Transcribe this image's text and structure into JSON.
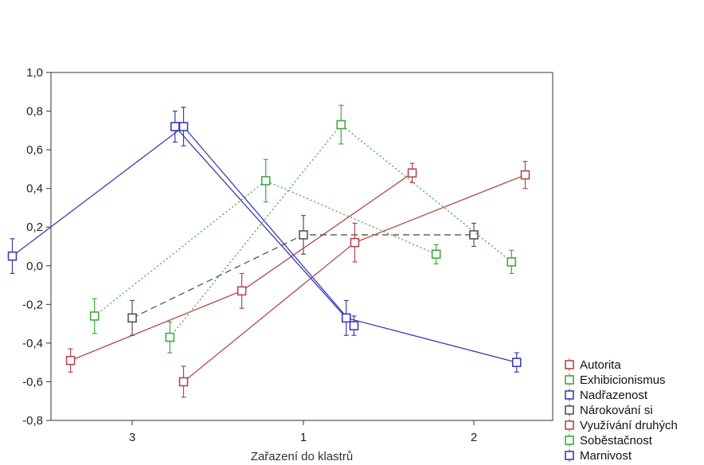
{
  "chart_data": {
    "type": "line",
    "title": "",
    "xlabel": "Zařazení do klastrů",
    "ylabel": "",
    "categories": [
      "3",
      "1",
      "2"
    ],
    "ylim": [
      -0.8,
      1.0
    ],
    "yticks": [
      "1,0",
      "0,8",
      "0,6",
      "0,4",
      "0,2",
      "0,0",
      "-0,2",
      "-0,4",
      "-0,6",
      "-0,8"
    ],
    "grid": false,
    "legend_position": "right",
    "series": [
      {
        "name": "Autorita",
        "color": "#b5484b",
        "dash": "solid",
        "values": [
          -0.49,
          -0.13,
          0.48
        ],
        "errors": [
          0.06,
          0.09,
          0.05
        ],
        "offset": -0.36
      },
      {
        "name": "Exhibicionismus",
        "color": "#3faa3f",
        "dash": "dotted",
        "values": [
          -0.26,
          0.44,
          0.06
        ],
        "errors": [
          0.09,
          0.11,
          0.05
        ],
        "offset": -0.22
      },
      {
        "name": "Nadřazenost",
        "color": "#3c3cb5",
        "dash": "solid",
        "values": [
          0.05,
          0.72,
          -0.31
        ],
        "errors": [
          0.09,
          0.1,
          0.05
        ],
        "offset": -0.7
      },
      {
        "name": "Nárokování si",
        "color": "#555555",
        "dash": "dashed",
        "values": [
          -0.27,
          0.16,
          0.16
        ],
        "errors": [
          0.09,
          0.1,
          0.06
        ],
        "offset": 0.0
      },
      {
        "name": "Využívání druhých",
        "color": "#b5484b",
        "dash": "solid",
        "values": [
          -0.6,
          0.12,
          0.47
        ],
        "errors": [
          0.08,
          0.1,
          0.07
        ],
        "offset": 0.3
      },
      {
        "name": "Soběstačnost",
        "color": "#3faa3f",
        "dash": "dotted",
        "values": [
          -0.37,
          0.73,
          0.02
        ],
        "errors": [
          0.08,
          0.1,
          0.06
        ],
        "offset": 0.22
      },
      {
        "name": "Marnivost",
        "color": "#3c3cb5",
        "dash": "solid",
        "values": [
          0.72,
          -0.27,
          -0.5
        ],
        "errors": [
          0.08,
          0.09,
          0.05
        ],
        "offset": 0.25
      }
    ]
  }
}
